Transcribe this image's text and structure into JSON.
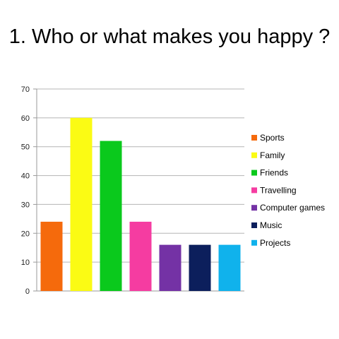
{
  "chart_data": {
    "type": "bar",
    "title": "1. Who or what makes you happy ?",
    "categories": [
      "Sports",
      "Family",
      "Friends",
      "Travelling",
      "Computer games",
      "Music",
      "Projects"
    ],
    "values": [
      24,
      60,
      52,
      24,
      16,
      16,
      16
    ],
    "colors": [
      "#f56a0c",
      "#fbfb14",
      "#0ac91c",
      "#f53ca1",
      "#7432a5",
      "#0c1f5c",
      "#10b2ec"
    ],
    "yticks": [
      "0",
      "10",
      "20",
      "30",
      "40",
      "50",
      "60",
      "70"
    ],
    "ylim": [
      0,
      70
    ],
    "grid": true,
    "legend": "right"
  }
}
